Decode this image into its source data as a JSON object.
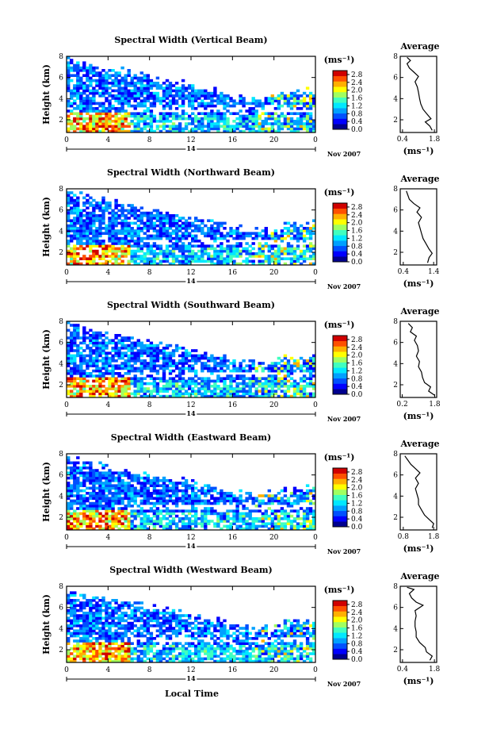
{
  "x_axis_label": "Local Time",
  "height_label": "Height (km)",
  "date_label": "Nov 2007",
  "day_label": "14",
  "colorbar_unit": "(ms⁻¹)",
  "average_unit": "(ms⁻¹)",
  "average_title": "Average",
  "colors": {
    "scale": [
      "#00008f",
      "#0000ff",
      "#0050ff",
      "#00a0ff",
      "#00e8ff",
      "#40ffbf",
      "#a0ff60",
      "#ffff00",
      "#ffb000",
      "#ff5000",
      "#d00000"
    ]
  },
  "chart_data": [
    {
      "type": "heatmap",
      "title": "Spectral Width (Vertical Beam)",
      "xlabel": "",
      "ylabel": "Height (km)",
      "x_ticks": [
        "0",
        "4",
        "8",
        "12",
        "16",
        "20",
        "0"
      ],
      "xlim": [
        0,
        24
      ],
      "y_ticks": [
        "2",
        "4",
        "6",
        "8"
      ],
      "ylim": [
        0.8,
        8
      ],
      "colorbar": {
        "ticks": [
          "0.0",
          "0.4",
          "0.8",
          "1.2",
          "1.6",
          "2.0",
          "2.4",
          "2.8"
        ],
        "range": [
          0,
          3.0
        ]
      },
      "average": {
        "title": "Average",
        "xlabel": "(ms⁻¹)",
        "x_ticks": [
          "0.4",
          "1.8"
        ],
        "xlim": [
          0.3,
          1.9
        ],
        "y_ticks": [
          "2",
          "4",
          "6",
          "8"
        ],
        "ylim": [
          0.8,
          8
        ],
        "profile": [
          [
            1.0,
            1.7
          ],
          [
            1.4,
            1.6
          ],
          [
            1.8,
            1.4
          ],
          [
            2.1,
            1.65
          ],
          [
            2.6,
            1.45
          ],
          [
            3.0,
            1.3
          ],
          [
            3.5,
            1.2
          ],
          [
            4.0,
            1.15
          ],
          [
            4.6,
            1.1
          ],
          [
            5.1,
            1.05
          ],
          [
            5.6,
            0.95
          ],
          [
            6.1,
            1.1
          ],
          [
            6.5,
            0.9
          ],
          [
            6.9,
            0.7
          ],
          [
            7.3,
            0.6
          ],
          [
            7.6,
            0.75
          ],
          [
            7.9,
            0.6
          ]
        ]
      }
    },
    {
      "type": "heatmap",
      "title": "Spectral Width (Northward Beam)",
      "xlabel": "",
      "ylabel": "Height (km)",
      "x_ticks": [
        "0",
        "4",
        "8",
        "12",
        "16",
        "20",
        "0"
      ],
      "xlim": [
        0,
        24
      ],
      "y_ticks": [
        "2",
        "4",
        "6",
        "8"
      ],
      "ylim": [
        0.8,
        8
      ],
      "colorbar": {
        "ticks": [
          "0.0",
          "0.4",
          "0.8",
          "1.2",
          "1.6",
          "2.0",
          "2.4",
          "2.8"
        ],
        "range": [
          0,
          3.0
        ]
      },
      "average": {
        "title": "Average",
        "xlabel": "(ms⁻¹)",
        "x_ticks": [
          "0.4",
          "1.4"
        ],
        "xlim": [
          0.3,
          1.5
        ],
        "y_ticks": [
          "2",
          "4",
          "6",
          "8"
        ],
        "ylim": [
          0.8,
          8
        ],
        "profile": [
          [
            1.0,
            1.2
          ],
          [
            1.5,
            1.25
          ],
          [
            1.9,
            1.35
          ],
          [
            2.3,
            1.25
          ],
          [
            2.8,
            1.15
          ],
          [
            3.3,
            1.05
          ],
          [
            3.8,
            1.0
          ],
          [
            4.3,
            0.95
          ],
          [
            4.8,
            0.9
          ],
          [
            5.3,
            1.0
          ],
          [
            5.8,
            0.85
          ],
          [
            6.2,
            0.95
          ],
          [
            6.6,
            0.75
          ],
          [
            7.0,
            0.6
          ],
          [
            7.4,
            0.55
          ],
          [
            7.8,
            0.5
          ]
        ]
      }
    },
    {
      "type": "heatmap",
      "title": "Spectral Width (Southward Beam)",
      "xlabel": "",
      "ylabel": "Height (km)",
      "x_ticks": [
        "0",
        "4",
        "8",
        "12",
        "16",
        "20",
        "0"
      ],
      "xlim": [
        0,
        24
      ],
      "y_ticks": [
        "2",
        "4",
        "6",
        "8"
      ],
      "ylim": [
        0.8,
        8
      ],
      "colorbar": {
        "ticks": [
          "0.0",
          "0.4",
          "0.8",
          "1.2",
          "1.6",
          "2.0",
          "2.4",
          "2.8"
        ],
        "range": [
          0,
          3.0
        ]
      },
      "average": {
        "title": "Average",
        "xlabel": "(ms⁻¹)",
        "x_ticks": [
          "0.2",
          "1.8"
        ],
        "xlim": [
          0.1,
          1.9
        ],
        "y_ticks": [
          "2",
          "4",
          "6",
          "8"
        ],
        "ylim": [
          0.8,
          8
        ],
        "profile": [
          [
            1.0,
            1.8
          ],
          [
            1.4,
            1.5
          ],
          [
            1.8,
            1.6
          ],
          [
            2.2,
            1.3
          ],
          [
            2.7,
            1.2
          ],
          [
            3.2,
            1.15
          ],
          [
            3.7,
            1.0
          ],
          [
            4.2,
            1.05
          ],
          [
            4.7,
            0.9
          ],
          [
            5.2,
            1.0
          ],
          [
            5.7,
            0.95
          ],
          [
            6.2,
            0.8
          ],
          [
            6.6,
            0.9
          ],
          [
            7.0,
            0.6
          ],
          [
            7.4,
            0.7
          ],
          [
            7.8,
            0.5
          ]
        ]
      }
    },
    {
      "type": "heatmap",
      "title": "Spectral Width (Eastward Beam)",
      "xlabel": "",
      "ylabel": "Height (km)",
      "x_ticks": [
        "0",
        "4",
        "8",
        "12",
        "16",
        "20",
        "0"
      ],
      "xlim": [
        0,
        24
      ],
      "y_ticks": [
        "2",
        "4",
        "6",
        "8"
      ],
      "ylim": [
        0.8,
        8
      ],
      "colorbar": {
        "ticks": [
          "0.0",
          "0.4",
          "0.8",
          "1.2",
          "1.6",
          "2.0",
          "2.4",
          "2.8"
        ],
        "range": [
          0,
          3.0
        ]
      },
      "average": {
        "title": "Average",
        "xlabel": "(ms⁻¹)",
        "x_ticks": [
          "0.8",
          "1.8"
        ],
        "xlim": [
          0.7,
          1.9
        ],
        "y_ticks": [
          "2",
          "4",
          "6",
          "8"
        ],
        "ylim": [
          0.8,
          8
        ],
        "profile": [
          [
            1.0,
            1.75
          ],
          [
            1.4,
            1.8
          ],
          [
            1.8,
            1.65
          ],
          [
            2.2,
            1.5
          ],
          [
            2.7,
            1.4
          ],
          [
            3.2,
            1.3
          ],
          [
            3.7,
            1.3
          ],
          [
            4.2,
            1.25
          ],
          [
            4.7,
            1.2
          ],
          [
            5.2,
            1.3
          ],
          [
            5.7,
            1.2
          ],
          [
            6.2,
            1.35
          ],
          [
            6.6,
            1.2
          ],
          [
            7.0,
            1.05
          ],
          [
            7.4,
            0.95
          ],
          [
            7.8,
            0.85
          ]
        ]
      }
    },
    {
      "type": "heatmap",
      "title": "Spectral Width (Westward Beam)",
      "xlabel": "Local Time",
      "ylabel": "Height (km)",
      "x_ticks": [
        "0",
        "4",
        "8",
        "12",
        "16",
        "20",
        "0"
      ],
      "xlim": [
        0,
        24
      ],
      "y_ticks": [
        "2",
        "4",
        "6",
        "8"
      ],
      "ylim": [
        0.8,
        8
      ],
      "colorbar": {
        "ticks": [
          "0.0",
          "0.4",
          "0.8",
          "1.2",
          "1.6",
          "2.0",
          "2.4",
          "2.8"
        ],
        "range": [
          0,
          3.0
        ]
      },
      "average": {
        "title": "Average",
        "xlabel": "(ms⁻¹)",
        "x_ticks": [
          "0.4",
          "1.8"
        ],
        "xlim": [
          0.3,
          1.9
        ],
        "y_ticks": [
          "2",
          "4",
          "6",
          "8"
        ],
        "ylim": [
          0.8,
          8
        ],
        "profile": [
          [
            1.0,
            1.6
          ],
          [
            1.4,
            1.7
          ],
          [
            1.8,
            1.45
          ],
          [
            2.2,
            1.4
          ],
          [
            2.7,
            1.15
          ],
          [
            3.2,
            1.0
          ],
          [
            3.7,
            1.0
          ],
          [
            4.2,
            0.95
          ],
          [
            4.7,
            0.95
          ],
          [
            5.2,
            1.0
          ],
          [
            5.7,
            0.95
          ],
          [
            6.2,
            1.3
          ],
          [
            6.5,
            1.0
          ],
          [
            6.9,
            0.8
          ],
          [
            7.3,
            0.7
          ],
          [
            7.7,
            0.9
          ],
          [
            7.9,
            0.6
          ]
        ]
      }
    }
  ]
}
